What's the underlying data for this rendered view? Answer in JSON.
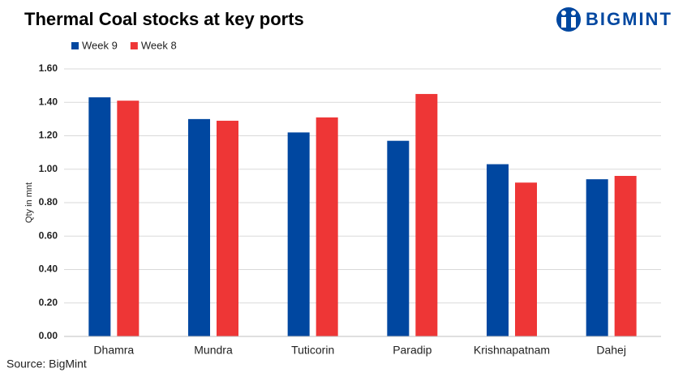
{
  "chart_data": {
    "type": "bar",
    "title": "Thermal Coal stocks at key ports",
    "logo": "BIGMINT",
    "y_label": "Qty in mnt",
    "source": "Source: BigMint",
    "categories": [
      "Dhamra",
      "Mundra",
      "Tuticorin",
      "Paradip",
      "Krishnapatnam",
      "Dahej"
    ],
    "series": [
      {
        "name": "Week 9",
        "color": "#0047a0",
        "values": [
          1.43,
          1.3,
          1.22,
          1.17,
          1.03,
          0.94
        ]
      },
      {
        "name": "Week 8",
        "color": "#ee3636",
        "values": [
          1.41,
          1.29,
          1.31,
          1.45,
          0.92,
          0.96
        ]
      }
    ],
    "ylim": [
      0,
      1.6
    ],
    "yticks": [
      {
        "value": 0,
        "label": "0.00"
      },
      {
        "value": 0.2,
        "label": "0.20"
      },
      {
        "value": 0.4,
        "label": "0.40"
      },
      {
        "value": 0.6,
        "label": "0.60"
      },
      {
        "value": 0.8,
        "label": "0.80"
      },
      {
        "value": 1,
        "label": "1.00"
      },
      {
        "value": 1.2,
        "label": "1.20"
      },
      {
        "value": 1.4,
        "label": "1.40"
      },
      {
        "value": 1.6,
        "label": "1.60"
      }
    ],
    "grid": true,
    "legend": "top-left"
  }
}
